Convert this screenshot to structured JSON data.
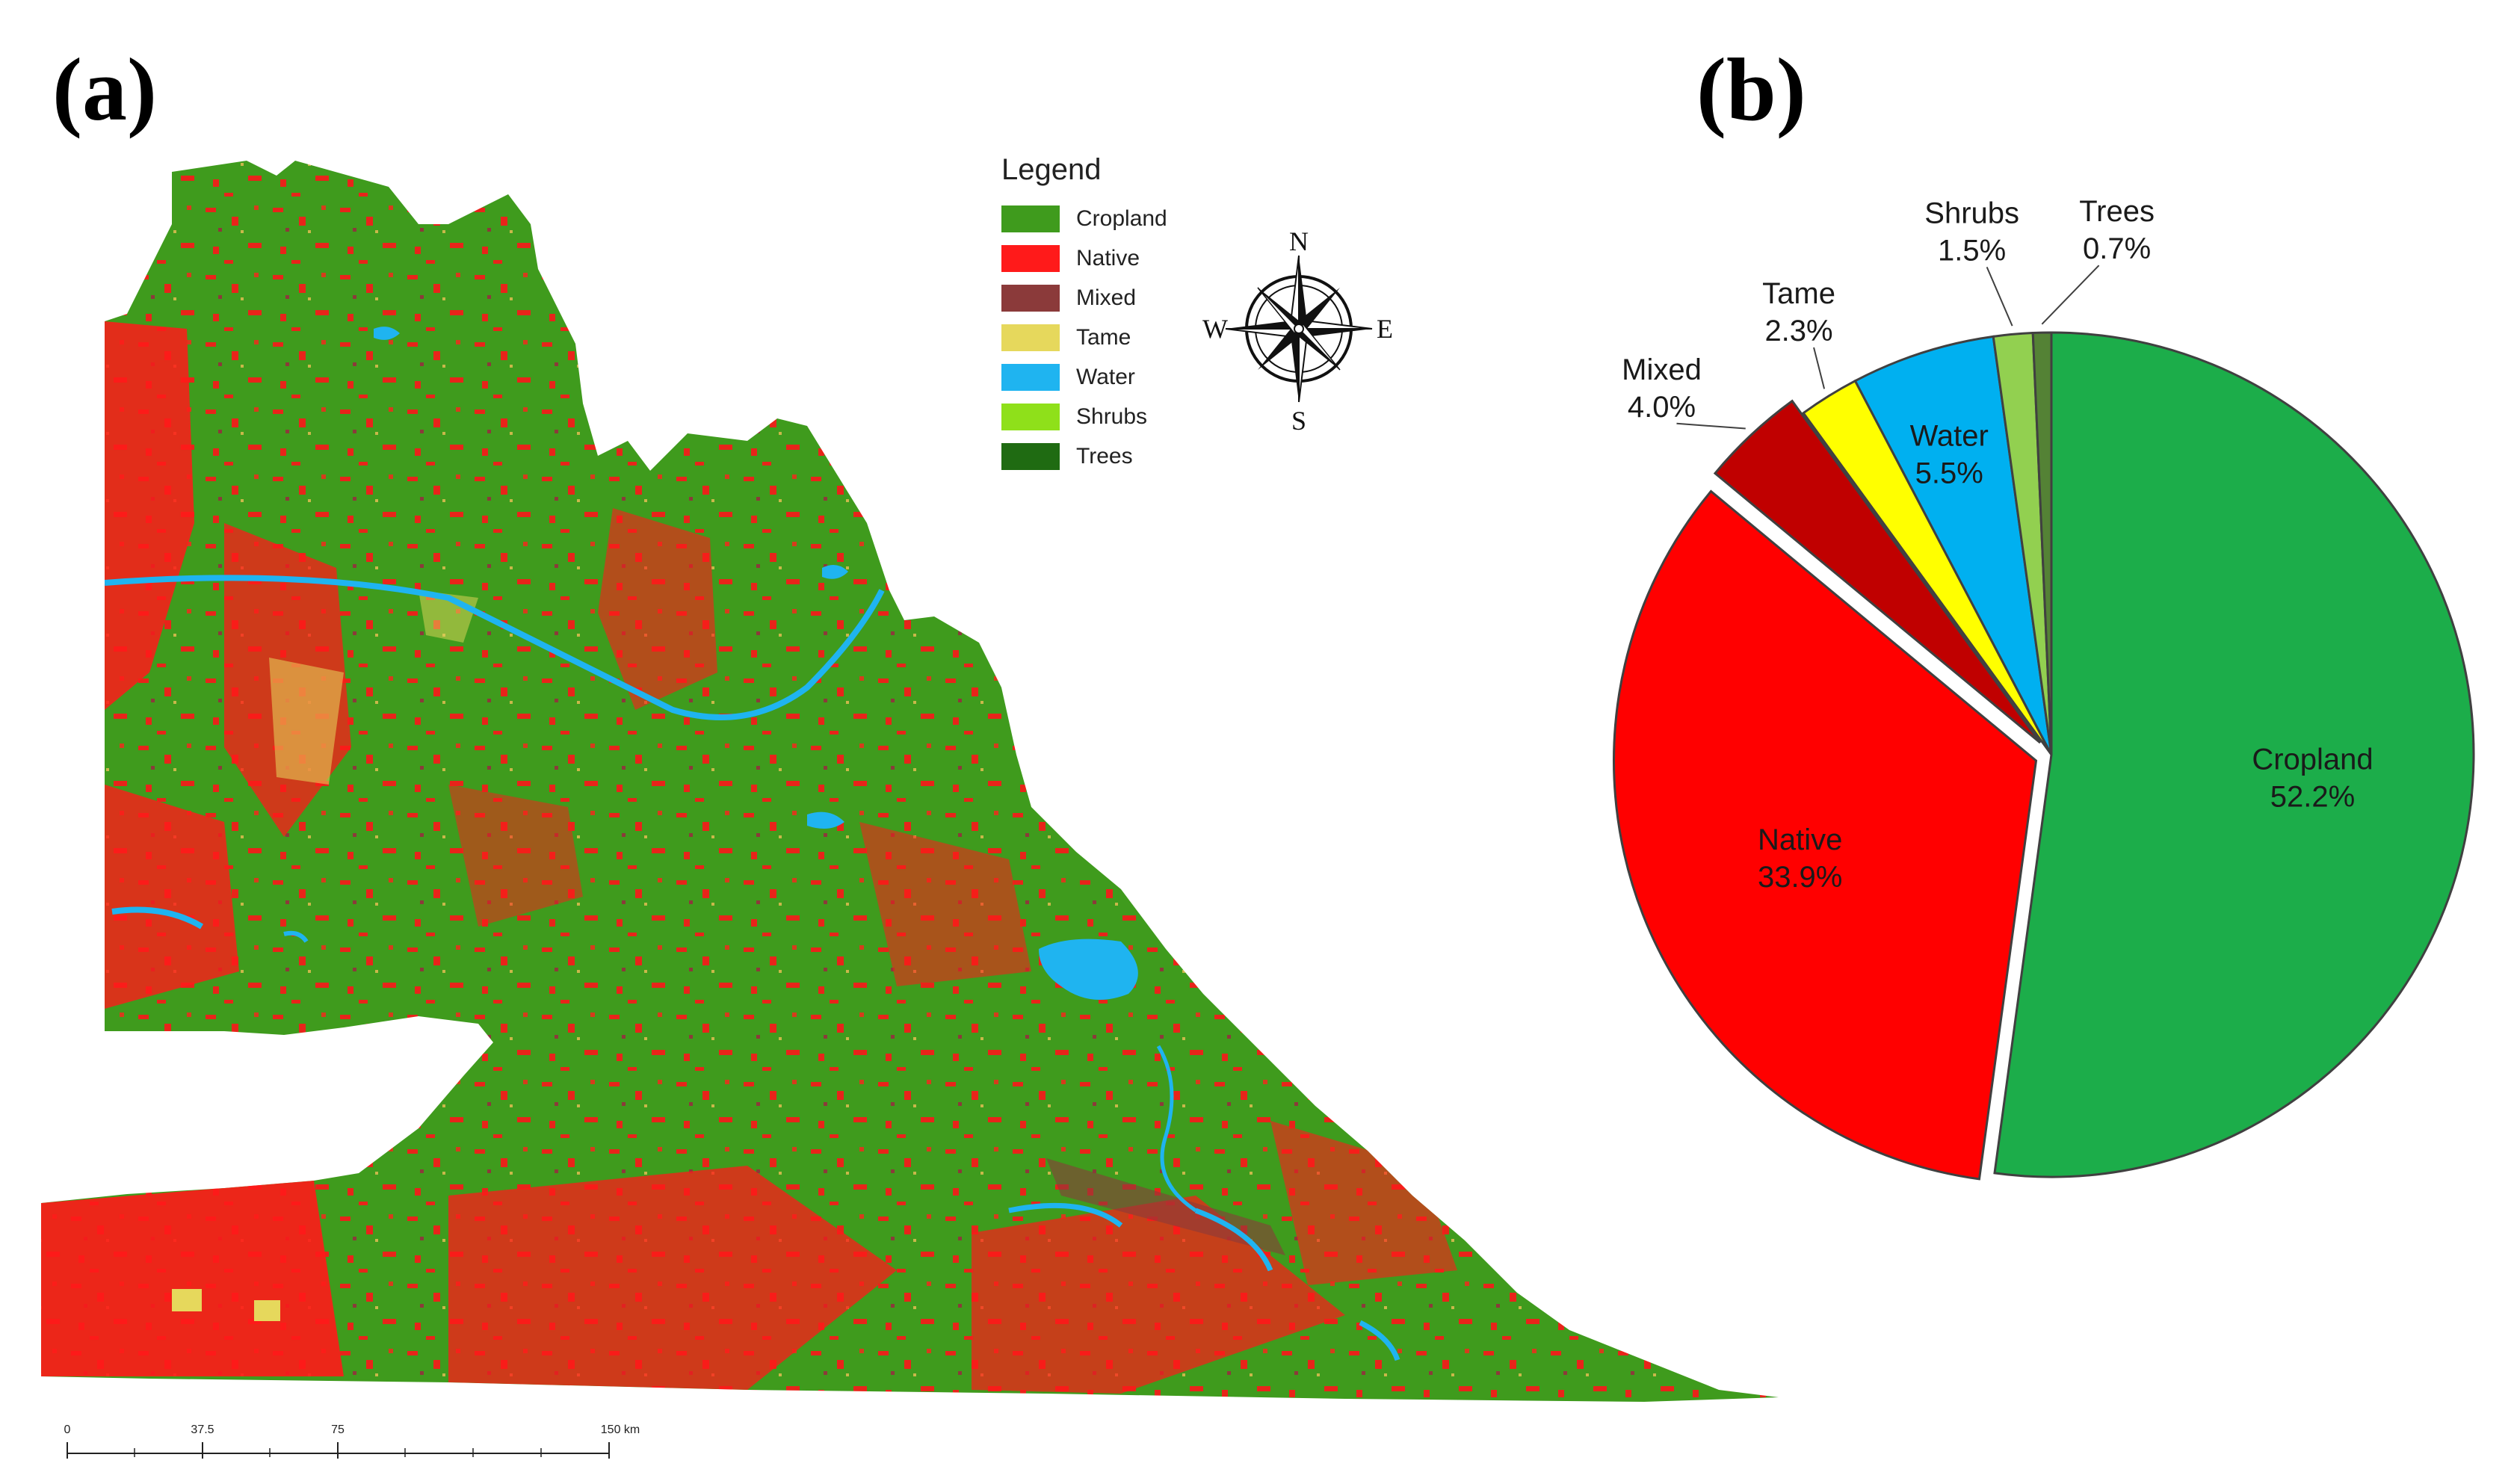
{
  "panels": {
    "a_label": "(a)",
    "b_label": "(b)"
  },
  "map": {
    "legend_title": "Legend",
    "legend_items": [
      {
        "label": "Cropland",
        "color": "#3f9b1d"
      },
      {
        "label": "Native",
        "color": "#ff1a1a"
      },
      {
        "label": "Mixed",
        "color": "#8b3a3a"
      },
      {
        "label": "Tame",
        "color": "#e6d85c"
      },
      {
        "label": "Water",
        "color": "#1fb4f0"
      },
      {
        "label": "Shrubs",
        "color": "#8fe01a"
      },
      {
        "label": "Trees",
        "color": "#1f6b12"
      }
    ],
    "compass": {
      "n": "N",
      "s": "S",
      "e": "E",
      "w": "W"
    },
    "scale_bar": {
      "ticks": [
        "0",
        "37.5",
        "75",
        "150 km"
      ],
      "tick_values": [
        0,
        37.5,
        75,
        150
      ]
    }
  },
  "chart_data": {
    "type": "pie",
    "start_angle_deg_clockwise_from_top": 0,
    "slices": [
      {
        "name": "Cropland",
        "value": 52.2,
        "label": "52.2%",
        "color": "#1cad4a",
        "exploded": false
      },
      {
        "name": "Native",
        "value": 33.9,
        "label": "33.9%",
        "color": "#ff0000",
        "exploded": true
      },
      {
        "name": "Mixed",
        "value": 4.0,
        "label": "4.0%",
        "color": "#c00000",
        "exploded": true
      },
      {
        "name": "Tame",
        "value": 2.3,
        "label": "2.3%",
        "color": "#ffff00",
        "exploded": false
      },
      {
        "name": "Water",
        "value": 5.5,
        "label": "5.5%",
        "color": "#00b0f0",
        "exploded": false
      },
      {
        "name": "Shrubs",
        "value": 1.5,
        "label": "1.5%",
        "color": "#92d050",
        "exploded": false
      },
      {
        "name": "Trees",
        "value": 0.7,
        "label": "0.7%",
        "color": "#548235",
        "exploded": false
      }
    ]
  }
}
